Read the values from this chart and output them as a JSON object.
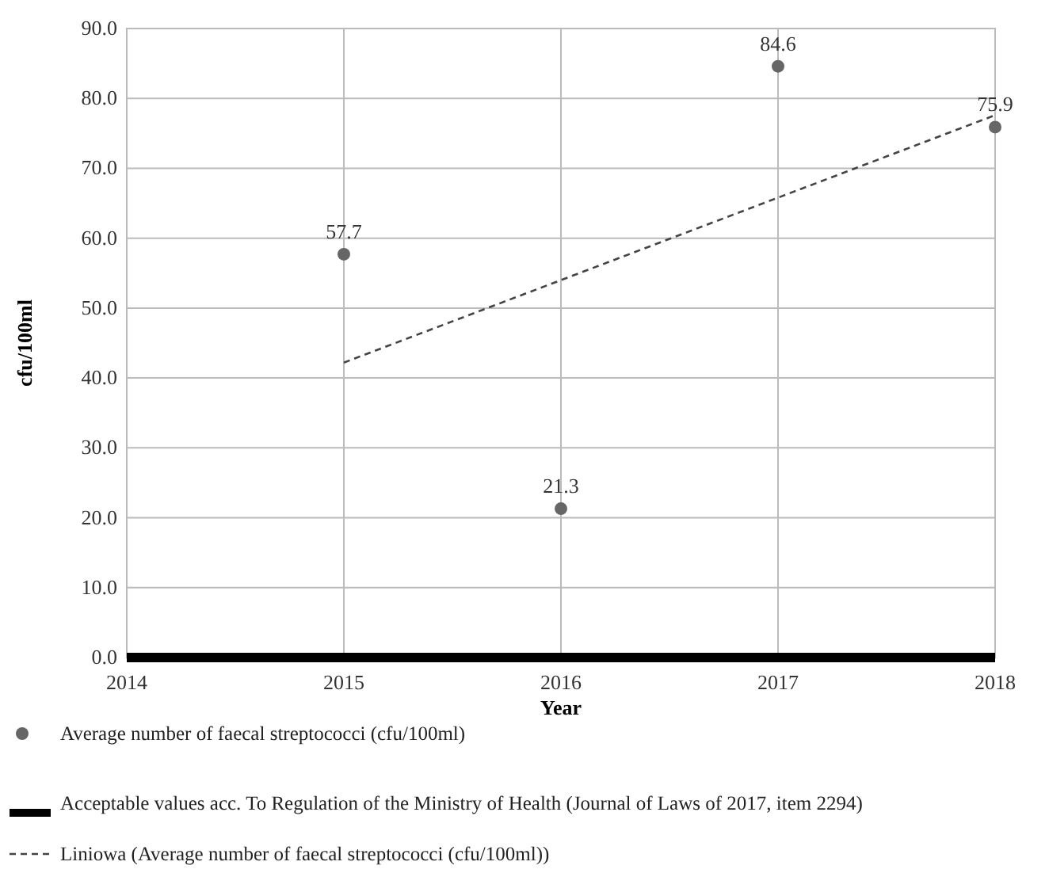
{
  "chart_data": {
    "type": "scatter",
    "xlabel": "Year",
    "ylabel": "cfu/100ml",
    "xlim": [
      2014,
      2018
    ],
    "xticks": [
      2014,
      2015,
      2016,
      2017,
      2018
    ],
    "ylim": [
      0,
      90
    ],
    "yticks": [
      {
        "value": 0,
        "label": "0.0"
      },
      {
        "value": 10,
        "label": "10.0"
      },
      {
        "value": 20,
        "label": "20.0"
      },
      {
        "value": 30,
        "label": "30.0"
      },
      {
        "value": 40,
        "label": "40.0"
      },
      {
        "value": 50,
        "label": "50.0"
      },
      {
        "value": 60,
        "label": "60.0"
      },
      {
        "value": 70,
        "label": "70.0"
      },
      {
        "value": 80,
        "label": "80.0"
      },
      {
        "value": 90,
        "label": "90.0"
      }
    ],
    "grid": true,
    "legend": "bottom",
    "series": [
      {
        "marker": "circle",
        "name": "Average number of faecal streptococci (cfu/100ml)",
        "color": "#666666",
        "x": [
          2015,
          2016,
          2017,
          2018
        ],
        "values": [
          57.7,
          21.3,
          84.6,
          75.9
        ],
        "value_labels": [
          "57.7",
          "21.3",
          "84.6",
          "75.9"
        ]
      },
      {
        "type": "line",
        "name": "Acceptable values acc. To Regulation of the Ministry of Health (Journal of Laws of 2017, item 2294)",
        "color": "#000000",
        "x": [
          2014,
          2018
        ],
        "values": [
          0,
          0
        ],
        "line_style": "solid",
        "marker": "none"
      },
      {
        "type": "line",
        "name": "Liniowa (Average number of faecal streptococci (cfu/100ml))",
        "color": "#444444",
        "x": [
          2015,
          2018
        ],
        "values": [
          42.2,
          77.6
        ],
        "line_style": "dashed",
        "marker": "none"
      }
    ]
  }
}
